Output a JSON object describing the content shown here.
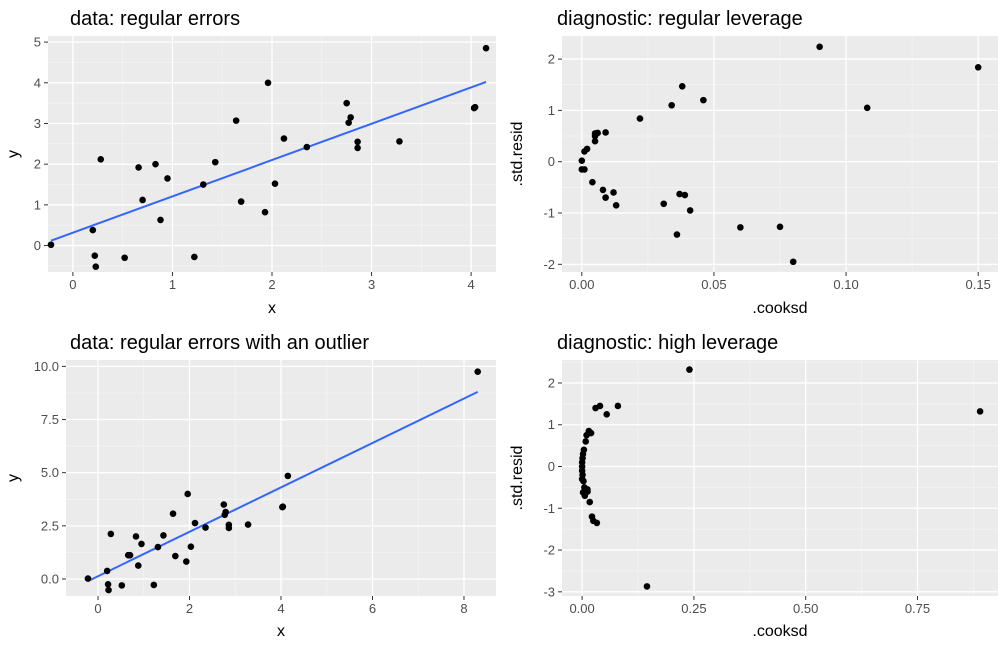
{
  "chart_data": [
    {
      "id": "p1",
      "type": "scatter",
      "title": "data: regular errors",
      "xlabel": "x",
      "ylabel": "y",
      "xlim": [
        -0.25,
        4.25
      ],
      "ylim": [
        -0.65,
        5.15
      ],
      "xticks": [
        0,
        1,
        2,
        3,
        4
      ],
      "xtick_labels": [
        "0",
        "1",
        "2",
        "3",
        "4"
      ],
      "yticks": [
        0,
        1,
        2,
        3,
        4,
        5
      ],
      "ytick_labels": [
        "0",
        "1",
        "2",
        "3",
        "4",
        "5"
      ],
      "grid": true,
      "fit_line": {
        "color": "#3366ff",
        "x": [
          -0.22,
          4.15
        ],
        "y": [
          0.12,
          4.02
        ]
      },
      "points": {
        "x": [
          -0.22,
          0.2,
          0.22,
          0.23,
          0.28,
          0.52,
          0.66,
          0.7,
          0.83,
          0.88,
          0.95,
          1.22,
          1.31,
          1.43,
          1.64,
          1.69,
          1.93,
          1.96,
          2.03,
          2.12,
          2.35,
          2.75,
          2.77,
          2.79,
          2.86,
          2.86,
          3.28,
          4.03,
          4.04,
          4.15
        ],
        "y": [
          0.02,
          0.38,
          -0.25,
          -0.52,
          2.12,
          -0.3,
          1.92,
          1.12,
          2.0,
          0.63,
          1.65,
          -0.28,
          1.5,
          2.05,
          3.07,
          1.08,
          0.82,
          4.0,
          1.52,
          2.63,
          2.42,
          3.5,
          3.02,
          3.15,
          2.55,
          2.4,
          2.56,
          3.38,
          3.4,
          4.85
        ]
      }
    },
    {
      "id": "p2",
      "type": "scatter",
      "title": "diagnostic: regular leverage",
      "xlabel": ".cooksd",
      "ylabel": ".std.resid",
      "xlim": [
        -0.0075,
        0.1575
      ],
      "ylim": [
        -2.15,
        2.45
      ],
      "xticks": [
        0,
        0.05,
        0.1,
        0.15
      ],
      "xtick_labels": [
        "0.00",
        "0.05",
        "0.10",
        "0.15"
      ],
      "yticks": [
        -2,
        -1,
        0,
        1,
        2
      ],
      "ytick_labels": [
        "-2",
        "-1",
        "0",
        "1",
        "2"
      ],
      "grid": true,
      "points": {
        "x": [
          0.0,
          0.001,
          0.001,
          0.002,
          0.004,
          0.005,
          0.005,
          0.005,
          0.006,
          0.008,
          0.009,
          0.009,
          0.012,
          0.013,
          0.022,
          0.031,
          0.034,
          0.036,
          0.037,
          0.038,
          0.039,
          0.041,
          0.046,
          0.06,
          0.075,
          0.08,
          0.09,
          0.108,
          0.15,
          0.0
        ],
        "y": [
          0.02,
          -0.15,
          0.2,
          0.25,
          -0.4,
          0.4,
          0.5,
          0.55,
          0.56,
          -0.55,
          0.57,
          -0.7,
          -0.6,
          -0.85,
          0.84,
          -0.82,
          1.1,
          -1.42,
          -0.63,
          1.47,
          -0.65,
          -0.95,
          1.2,
          -1.28,
          -1.27,
          -1.95,
          2.24,
          1.05,
          1.84,
          -0.15
        ]
      }
    },
    {
      "id": "p3",
      "type": "scatter",
      "title": "data: regular errors with an outlier",
      "xlabel": "x",
      "ylabel": "y",
      "xlim": [
        -0.7,
        8.7
      ],
      "ylim": [
        -0.8,
        10.3
      ],
      "xticks": [
        0,
        2,
        4,
        6,
        8
      ],
      "xtick_labels": [
        "0",
        "2",
        "4",
        "6",
        "8"
      ],
      "yticks": [
        0,
        2.5,
        5,
        7.5,
        10
      ],
      "ytick_labels": [
        "0.0",
        "2.5",
        "5.0",
        "7.5",
        "10.0"
      ],
      "grid": true,
      "fit_line": {
        "color": "#3366ff",
        "x": [
          -0.22,
          8.3
        ],
        "y": [
          -0.1,
          8.8
        ]
      },
      "points": {
        "x": [
          -0.22,
          0.2,
          0.22,
          0.23,
          0.28,
          0.52,
          0.66,
          0.7,
          0.83,
          0.88,
          0.95,
          1.22,
          1.31,
          1.43,
          1.64,
          1.69,
          1.93,
          1.96,
          2.03,
          2.12,
          2.35,
          2.75,
          2.77,
          2.79,
          2.86,
          2.86,
          3.28,
          4.03,
          4.04,
          4.15,
          8.3
        ],
        "y": [
          0.02,
          0.38,
          -0.25,
          -0.52,
          2.12,
          -0.3,
          1.12,
          1.12,
          2.0,
          0.63,
          1.65,
          -0.28,
          1.5,
          2.05,
          3.07,
          1.08,
          0.82,
          4.0,
          1.52,
          2.63,
          2.42,
          3.5,
          3.02,
          3.15,
          2.55,
          2.4,
          2.56,
          3.38,
          3.4,
          4.85,
          9.75
        ]
      }
    },
    {
      "id": "p4",
      "type": "scatter",
      "title": "diagnostic: high leverage",
      "xlabel": ".cooksd",
      "ylabel": ".std.resid",
      "xlim": [
        -0.045,
        0.93
      ],
      "ylim": [
        -3.1,
        2.55
      ],
      "xticks": [
        0,
        0.25,
        0.5,
        0.75
      ],
      "xtick_labels": [
        "0.00",
        "0.25",
        "0.50",
        "0.75"
      ],
      "yticks": [
        -3,
        -2,
        -1,
        0,
        1,
        2
      ],
      "ytick_labels": [
        "-3",
        "-2",
        "-1",
        "0",
        "1",
        "2"
      ],
      "grid": true,
      "points": {
        "x": [
          0.0,
          0.0,
          0.0,
          0.001,
          0.001,
          0.002,
          0.003,
          0.004,
          0.005,
          0.006,
          0.008,
          0.01,
          0.012,
          0.015,
          0.017,
          0.02,
          0.022,
          0.025,
          0.03,
          0.033,
          0.04,
          0.055,
          0.08,
          0.145,
          0.24,
          0.89,
          0.0,
          0.002,
          0.006,
          0.012
        ],
        "y": [
          0.0,
          0.1,
          -0.1,
          0.2,
          -0.2,
          0.3,
          -0.35,
          0.4,
          -0.5,
          -0.65,
          0.6,
          0.75,
          -0.6,
          0.85,
          -0.85,
          0.8,
          -1.2,
          -1.3,
          1.4,
          -1.35,
          1.45,
          1.25,
          1.45,
          -2.87,
          2.32,
          1.32,
          -0.3,
          -0.62,
          -0.7,
          -0.55
        ]
      }
    }
  ],
  "style": {
    "panel_background": "#ebebeb",
    "grid_major": "#ffffff",
    "point_color": "#000000",
    "line_color": "#3366ff"
  }
}
